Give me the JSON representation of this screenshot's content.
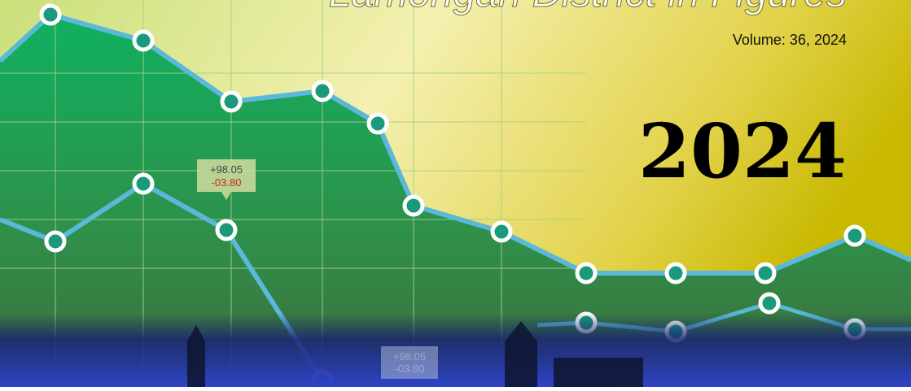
{
  "cover": {
    "title": "Lamongan District in Figures",
    "volume": "Volume: 36, 2024",
    "year": "2024",
    "tooltips": [
      {
        "up": "+98.05",
        "down": "-03.80"
      },
      {
        "up": "+98.05",
        "down": "-03.80"
      }
    ]
  }
}
